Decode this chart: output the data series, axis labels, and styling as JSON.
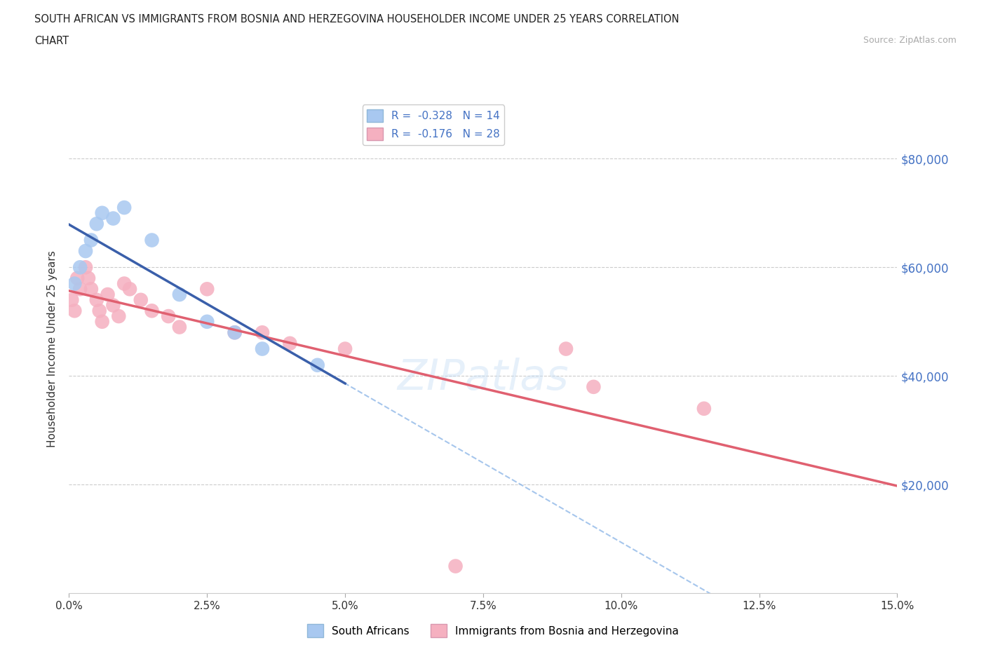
{
  "title_line1": "SOUTH AFRICAN VS IMMIGRANTS FROM BOSNIA AND HERZEGOVINA HOUSEHOLDER INCOME UNDER 25 YEARS CORRELATION",
  "title_line2": "CHART",
  "source": "Source: ZipAtlas.com",
  "ylabel": "Householder Income Under 25 years",
  "color_sa": "#a8c8f0",
  "color_bh": "#f5b0c0",
  "line_color_sa": "#3a5faa",
  "line_color_bh": "#e06070",
  "dashed_color": "#90b8e8",
  "watermark": "ZIPatlas",
  "sa_x": [
    0.1,
    0.2,
    0.3,
    0.4,
    0.5,
    0.6,
    0.8,
    1.0,
    1.5,
    2.0,
    2.5,
    3.0,
    3.5,
    4.5
  ],
  "sa_y": [
    57000,
    60000,
    63000,
    65000,
    68000,
    70000,
    69000,
    71000,
    65000,
    55000,
    50000,
    48000,
    45000,
    42000
  ],
  "bh_x": [
    0.05,
    0.1,
    0.15,
    0.2,
    0.3,
    0.35,
    0.4,
    0.5,
    0.55,
    0.6,
    0.7,
    0.8,
    0.9,
    1.0,
    1.1,
    1.3,
    1.5,
    1.8,
    2.0,
    2.5,
    3.0,
    3.5,
    4.0,
    5.0,
    7.0,
    9.0,
    9.5,
    11.5
  ],
  "bh_y": [
    54000,
    52000,
    58000,
    56000,
    60000,
    58000,
    56000,
    54000,
    52000,
    50000,
    55000,
    53000,
    51000,
    57000,
    56000,
    54000,
    52000,
    51000,
    49000,
    56000,
    48000,
    48000,
    46000,
    45000,
    5000,
    45000,
    38000,
    34000
  ]
}
